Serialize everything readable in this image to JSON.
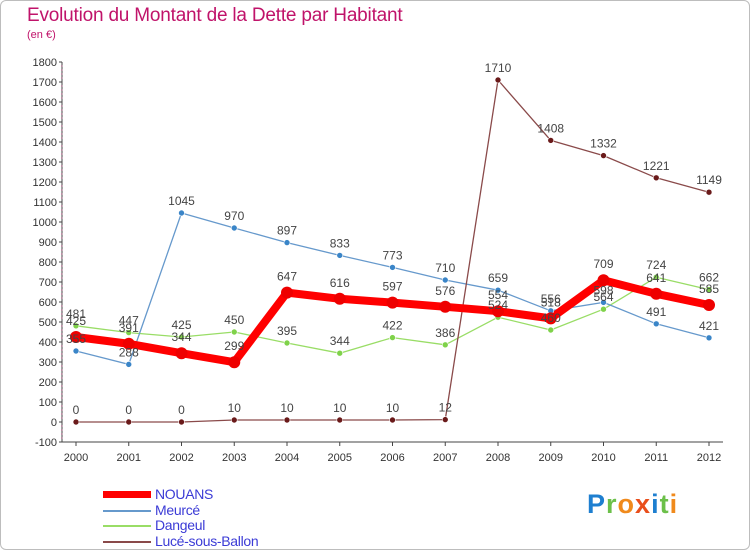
{
  "title": "Evolution du Montant de la Dette par Habitant",
  "subtitle": "(en €)",
  "logo": {
    "text": "Proxiti",
    "letters": [
      {
        "ch": "P",
        "color": "#1e7fd0"
      },
      {
        "ch": "r",
        "color": "#6cc04a"
      },
      {
        "ch": "o",
        "color": "#f08a1c"
      },
      {
        "ch": "x",
        "color": "#e94e1b"
      },
      {
        "ch": "i",
        "color": "#1e7fd0"
      },
      {
        "ch": "t",
        "color": "#6cc04a"
      },
      {
        "ch": "i",
        "color": "#f08a1c"
      }
    ]
  },
  "chart_data": {
    "type": "line",
    "title": "Evolution du Montant de la Dette par Habitant",
    "subtitle": "(en €)",
    "x": [
      "2000",
      "2001",
      "2002",
      "2003",
      "2004",
      "2005",
      "2006",
      "2007",
      "2008",
      "2009",
      "2010",
      "2011",
      "2012"
    ],
    "ylim": [
      -100,
      1800
    ],
    "yticks": [
      -100,
      0,
      100,
      200,
      300,
      400,
      500,
      600,
      700,
      800,
      900,
      1000,
      1100,
      1200,
      1300,
      1400,
      1500,
      1600,
      1700,
      1800
    ],
    "grid": false,
    "legend_position": "bottom-left",
    "series": [
      {
        "name": "Dangeul",
        "color": "#99dd66",
        "marker": "#7fd24a",
        "values": [
          481,
          447,
          425,
          450,
          395,
          344,
          422,
          386,
          524,
          460,
          564,
          724,
          662
        ],
        "labels": [
          "481",
          "447",
          "425",
          "450",
          "395",
          "344",
          "422",
          "386",
          "524",
          "460",
          "564",
          "724",
          "662"
        ]
      },
      {
        "name": "Meurcé",
        "color": "#6699cc",
        "marker": "#3a85c8",
        "values": [
          355,
          288,
          1045,
          970,
          897,
          833,
          773,
          710,
          659,
          556,
          598,
          491,
          421
        ],
        "labels": [
          "355",
          "288",
          "1045",
          "970",
          "897",
          "833",
          "773",
          "710",
          "659",
          "556",
          "598",
          "491",
          "421"
        ]
      },
      {
        "name": "Lucé-sous-Ballon",
        "color": "#8a4a4a",
        "marker": "#6a1a1a",
        "values": [
          0,
          0,
          0,
          10,
          10,
          10,
          10,
          12,
          1710,
          1408,
          1332,
          1221,
          1149
        ],
        "labels": [
          "0",
          "0",
          "0",
          "10",
          "10",
          "10",
          "10",
          "12",
          "1710",
          "1408",
          "1332",
          "1221",
          "1149"
        ]
      },
      {
        "name": "NOUANS",
        "color": "#ff0000",
        "marker": "#ee0000",
        "values": [
          425,
          391,
          344,
          299,
          647,
          616,
          597,
          576,
          554,
          518,
          709,
          641,
          585
        ],
        "labels": [
          "425",
          "391",
          "344",
          "299",
          "647",
          "616",
          "597",
          "576",
          "554",
          "518",
          "709",
          "641",
          "585"
        ]
      }
    ],
    "legend_order": [
      "NOUANS",
      "Meurcé",
      "Dangeul",
      "Lucé-sous-Ballon"
    ]
  }
}
